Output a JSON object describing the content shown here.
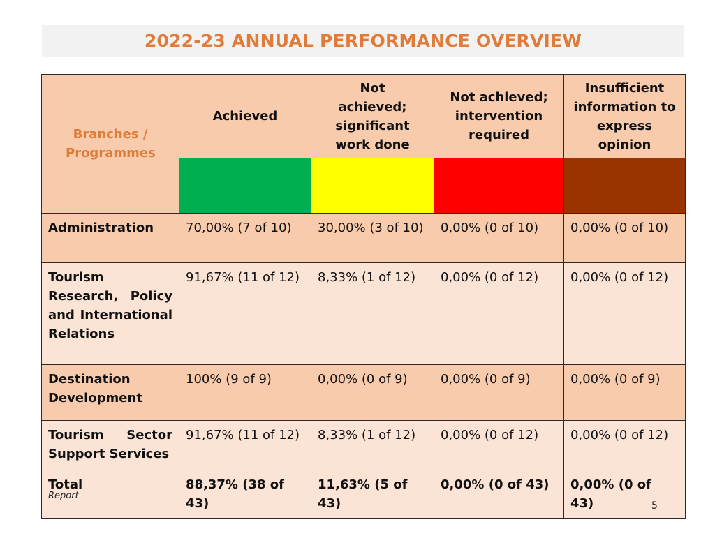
{
  "title": "2022-23 ANNUAL PERFORMANCE OVERVIEW",
  "table": {
    "headers": {
      "branches": "Branches / Programmes",
      "achieved": "Achieved",
      "not_achieved_work": "Not achieved; significant work done",
      "not_achieved_intervention": "Not achieved; intervention required",
      "insufficient": "Insufficient information to express opinion"
    },
    "status_colors": {
      "achieved": "#00b050",
      "not_achieved_work": "#ffff00",
      "not_achieved_intervention": "#ff0000",
      "insufficient": "#993300"
    },
    "rows": [
      {
        "name": "Administration",
        "achieved": "70,00% (7 of 10)",
        "work_done": "30,00% (3 of 10)",
        "intervention": "0,00% (0 of 10)",
        "insufficient": "0,00% (0 of 10)"
      },
      {
        "name": "Tourism Research, Policy and International Relations",
        "achieved": "91,67% (11 of 12)",
        "work_done": "8,33% (1 of 12)",
        "intervention": "0,00% (0 of 12)",
        "insufficient": "0,00% (0 of 12)"
      },
      {
        "name": "Destination Development",
        "achieved": "100% (9 of 9)",
        "work_done": "0,00% (0 of 9)",
        "intervention": "0,00% (0 of 9)",
        "insufficient": "0,00% (0 of 9)"
      },
      {
        "name": "Tourism Sector Support Services",
        "achieved": "91,67% (11 of 12)",
        "work_done": "8,33% (1 of 12)",
        "intervention": "0,00% (0 of 12)",
        "insufficient": "0,00% (0 of 12)"
      }
    ],
    "total": {
      "name": "Total",
      "achieved": "88,37% (38 of 43)",
      "work_done": "11,63% (5 of 43)",
      "intervention": "0,00% (0 of 43)",
      "insufficient": "0,00% (0 of 43)"
    }
  },
  "footnote": "Report",
  "page_number": "5"
}
